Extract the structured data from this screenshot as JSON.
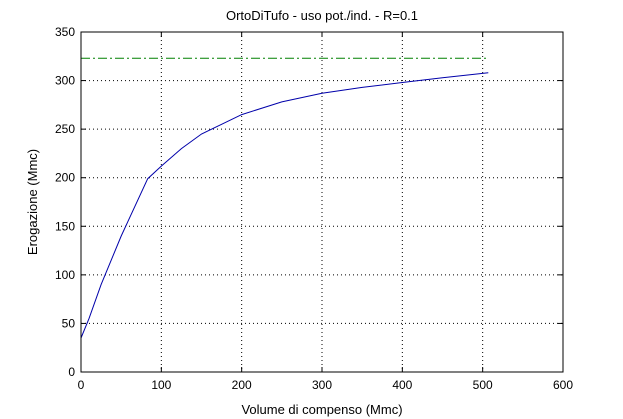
{
  "chart_data": {
    "type": "line",
    "title": "OrtoDiTufo  -  uso pot./ind.  -   R=0.1",
    "xlabel": "Volume di compenso (Mmc)",
    "ylabel": "Erogazione (Mmc)",
    "xlim": [
      0,
      600
    ],
    "ylim": [
      0,
      350
    ],
    "xticks": [
      0,
      100,
      200,
      300,
      400,
      500,
      600
    ],
    "yticks": [
      0,
      50,
      100,
      150,
      200,
      250,
      300,
      350
    ],
    "grid": true,
    "series": [
      {
        "color": "#0000aa",
        "style": "solid",
        "x": [
          0,
          10,
          25,
          50,
          83,
          100,
          125,
          150,
          175,
          200,
          250,
          300,
          350,
          400,
          450,
          507
        ],
        "y": [
          35,
          55,
          90,
          140,
          199,
          212,
          230,
          245,
          255,
          265,
          278,
          287,
          293,
          298,
          303,
          308
        ]
      },
      {
        "color": "#008000",
        "style": "dashdot",
        "x": [
          0,
          507
        ],
        "y": [
          323,
          323
        ]
      }
    ]
  }
}
